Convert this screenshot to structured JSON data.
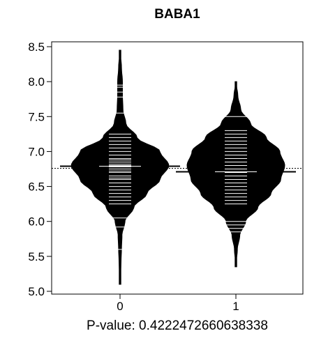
{
  "chart_data": {
    "type": "beanplot",
    "title": "BABA1",
    "xlabel": "P-value: 0.4222472660638338",
    "ylabel": "",
    "ylim": [
      5.0,
      8.5
    ],
    "y_ticks": [
      5.0,
      5.5,
      6.0,
      6.5,
      7.0,
      7.5,
      8.0,
      8.5
    ],
    "y_tick_labels": [
      "5.0",
      "5.5",
      "6.0",
      "6.5",
      "7.0",
      "7.5",
      "8.0",
      "8.5"
    ],
    "categories": [
      "0",
      "1"
    ],
    "overall_mean": 6.76,
    "series": [
      {
        "category": "0",
        "mean": 6.79,
        "density": [
          [
            5.1,
            0.0
          ],
          [
            5.4,
            0.02
          ],
          [
            5.6,
            0.03
          ],
          [
            5.8,
            0.04
          ],
          [
            6.0,
            0.1
          ],
          [
            6.2,
            0.28
          ],
          [
            6.4,
            0.55
          ],
          [
            6.6,
            0.82
          ],
          [
            6.8,
            1.0
          ],
          [
            7.0,
            0.82
          ],
          [
            7.2,
            0.35
          ],
          [
            7.4,
            0.12
          ],
          [
            7.6,
            0.06
          ],
          [
            7.8,
            0.05
          ],
          [
            8.0,
            0.05
          ],
          [
            8.2,
            0.03
          ],
          [
            8.45,
            0.0
          ]
        ],
        "observations": [
          5.6,
          5.92,
          6.05,
          6.25,
          6.3,
          6.35,
          6.4,
          6.45,
          6.5,
          6.55,
          6.6,
          6.62,
          6.65,
          6.7,
          6.72,
          6.75,
          6.78,
          6.8,
          6.82,
          6.85,
          6.88,
          6.9,
          6.95,
          7.0,
          7.05,
          7.1,
          7.15,
          7.2,
          7.25,
          7.55,
          7.78,
          7.85,
          7.92,
          7.95
        ]
      },
      {
        "category": "1",
        "mean": 6.71,
        "density": [
          [
            5.35,
            0.0
          ],
          [
            5.6,
            0.03
          ],
          [
            5.8,
            0.08
          ],
          [
            6.0,
            0.2
          ],
          [
            6.2,
            0.45
          ],
          [
            6.4,
            0.72
          ],
          [
            6.6,
            0.92
          ],
          [
            6.8,
            1.0
          ],
          [
            7.0,
            0.9
          ],
          [
            7.2,
            0.62
          ],
          [
            7.4,
            0.3
          ],
          [
            7.6,
            0.1
          ],
          [
            7.8,
            0.04
          ],
          [
            8.0,
            0.0
          ]
        ],
        "observations": [
          5.85,
          5.9,
          5.95,
          6.0,
          6.25,
          6.3,
          6.35,
          6.4,
          6.45,
          6.5,
          6.55,
          6.6,
          6.65,
          6.7,
          6.75,
          6.8,
          6.85,
          6.9,
          6.95,
          7.0,
          7.05,
          7.1,
          7.15,
          7.2,
          7.25,
          7.3,
          7.5
        ]
      }
    ]
  }
}
